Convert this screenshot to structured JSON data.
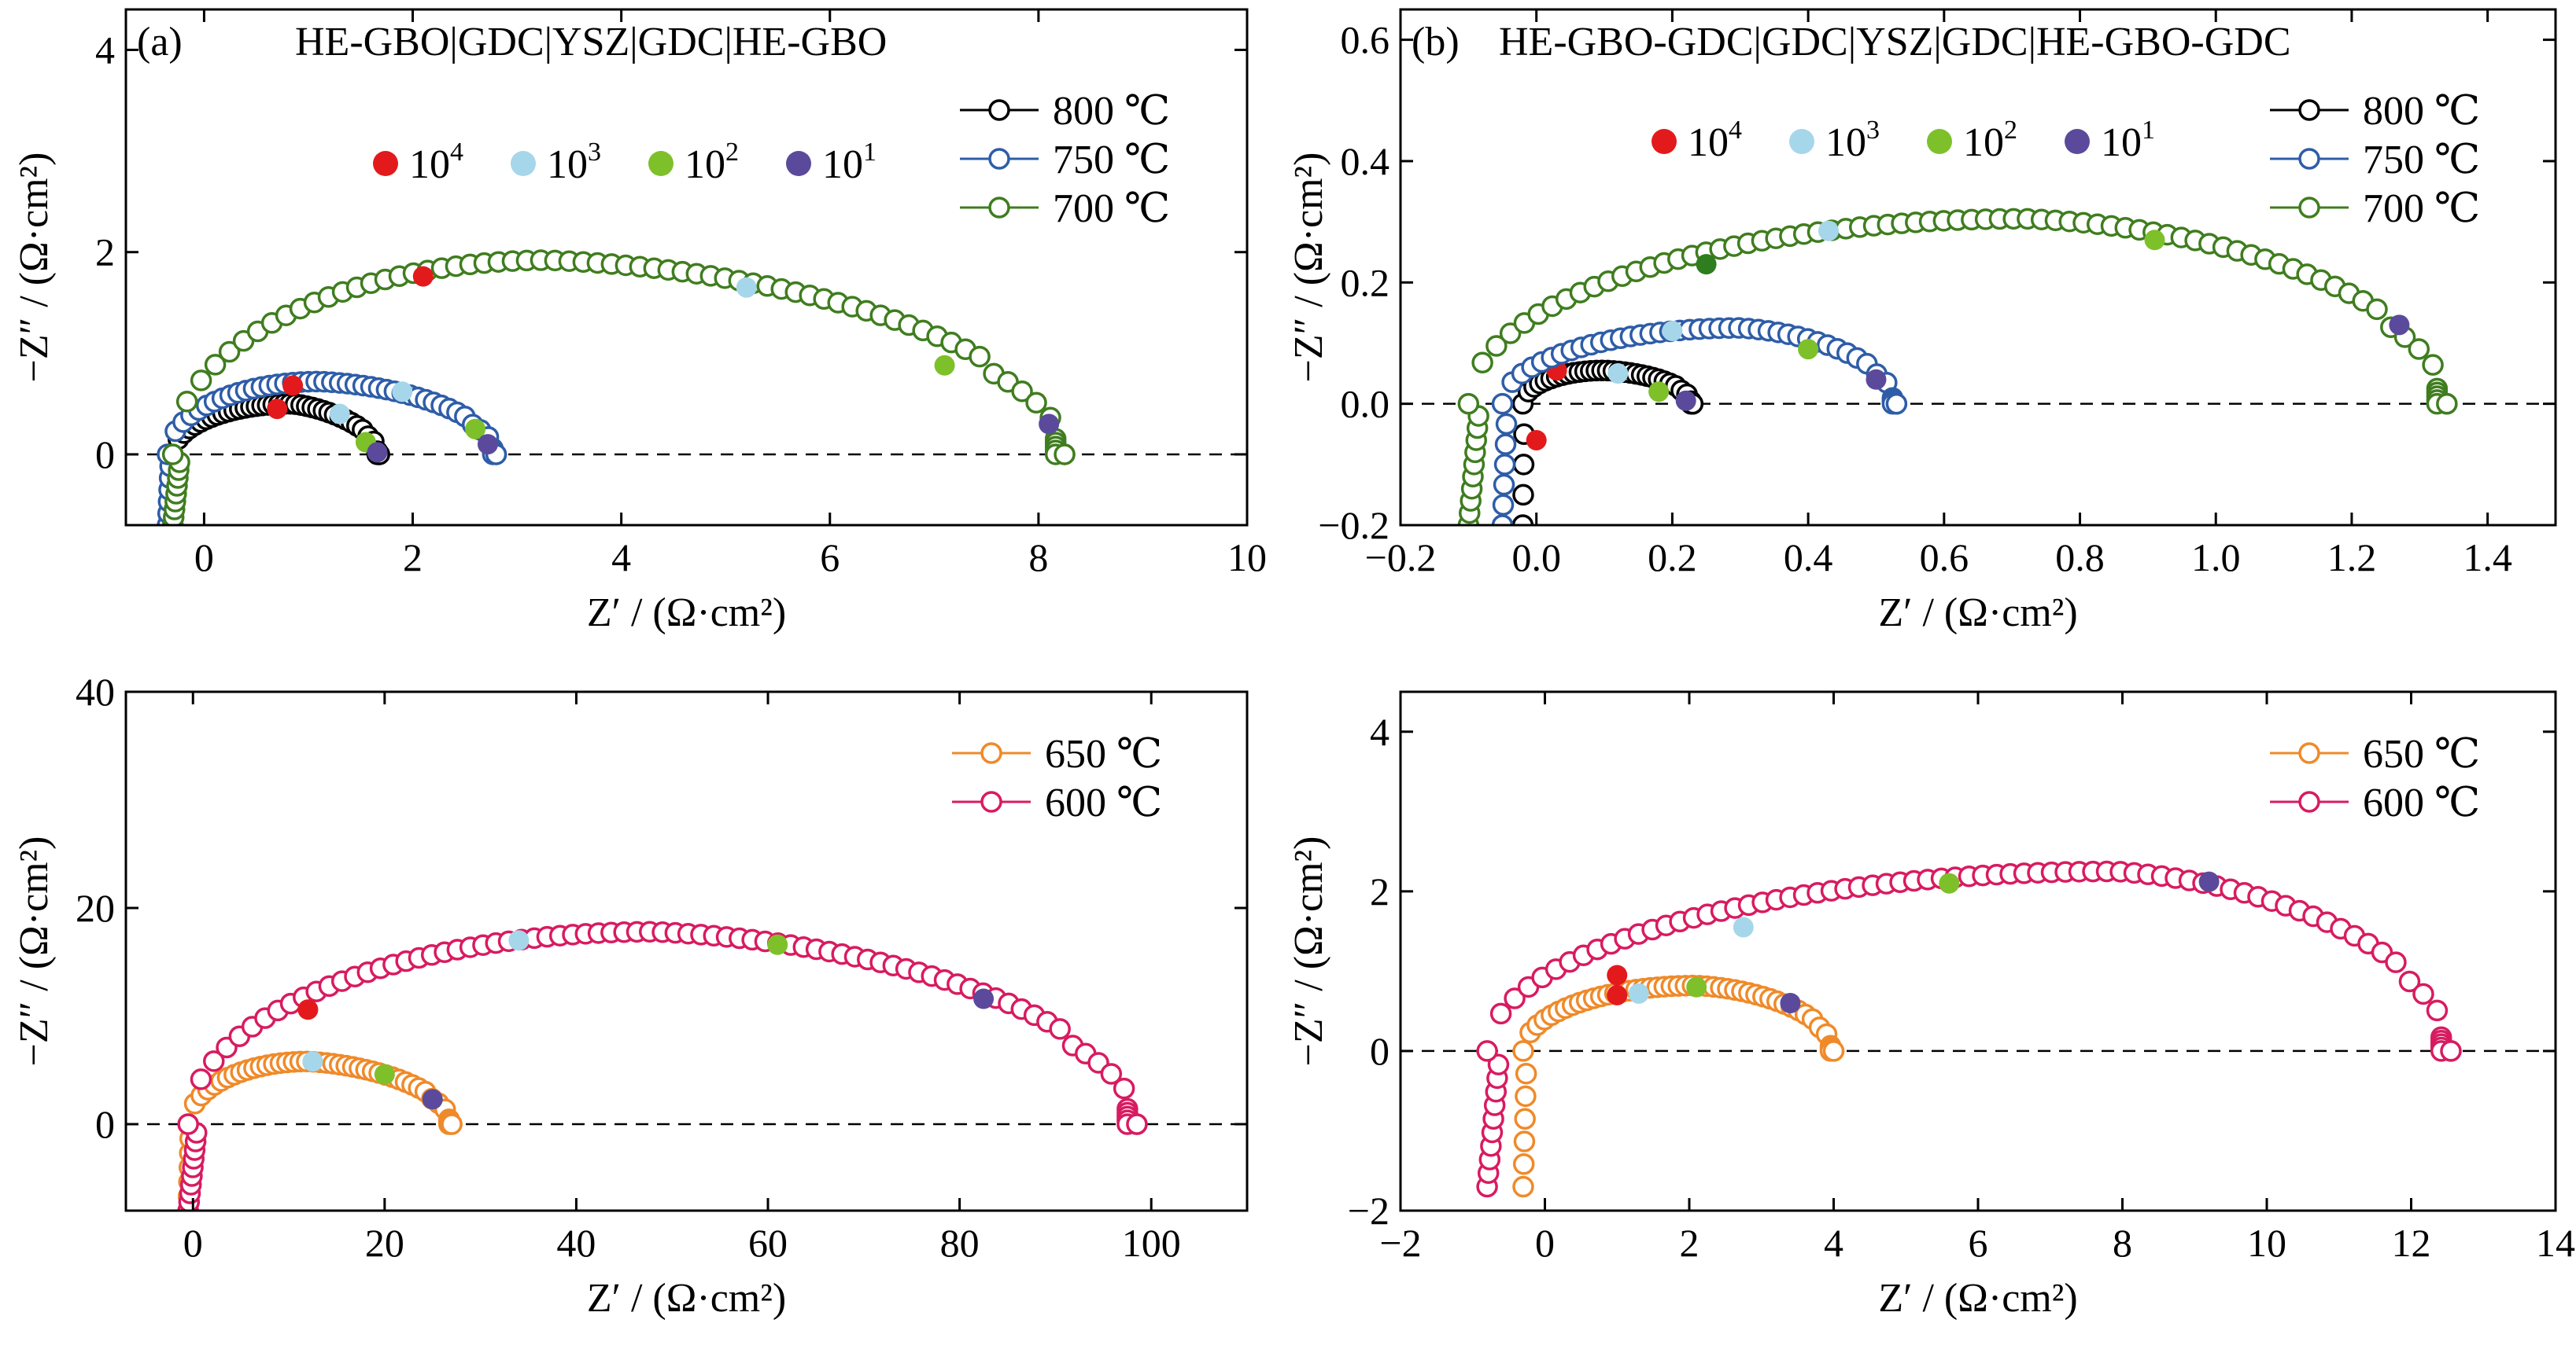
{
  "colors": {
    "800": "#000000",
    "750": "#2e5da8",
    "700": "#3f7d1f",
    "650": "#ef8a2a",
    "600": "#d81b60",
    "f1e4": "#e31a1c",
    "f1e3": "#a6d6ea",
    "f1e2": "#7ec02a",
    "f1e1": "#5b4a9b",
    "f1e2_panel_b700": "#2e7d1f"
  },
  "chart_data": [
    {
      "type": "scatter",
      "panel_label": "(a)",
      "title": "HE-GBO|GDC|YSZ|GDC|HE-GBO",
      "xlabel": "Z′ / (Ω·cm²)",
      "ylabel": "−Z″ / (Ω·cm²)",
      "xlim": [
        -0.75,
        10
      ],
      "ylim": [
        -0.7,
        4.4
      ],
      "xticks": [
        0,
        2,
        4,
        6,
        8,
        10
      ],
      "yticks": [
        0,
        2,
        4
      ],
      "zero_line": true,
      "legend_position": "top-right",
      "freq_markers_legend": [
        {
          "base": "10",
          "exp": "4",
          "color_key": "f1e4"
        },
        {
          "base": "10",
          "exp": "3",
          "color_key": "f1e3"
        },
        {
          "base": "10",
          "exp": "2",
          "color_key": "f1e2"
        },
        {
          "base": "10",
          "exp": "1",
          "color_key": "f1e1"
        }
      ],
      "series": [
        {
          "name": "800 ℃",
          "color_key": "800",
          "r0": -0.3,
          "r1": 0.85,
          "r2": 1.68,
          "h1": 0.5,
          "h2": 0.32,
          "y_start": -0.7,
          "y_end": 0,
          "n": 42,
          "freq_points": [
            {
              "x": 0.7,
              "y": 0.45,
              "color_key": "f1e4"
            },
            {
              "x": 1.3,
              "y": 0.4,
              "color_key": "f1e3"
            },
            {
              "x": 1.55,
              "y": 0.12,
              "color_key": "f1e2"
            },
            {
              "x": 1.66,
              "y": 0.02,
              "color_key": "f1e1"
            }
          ]
        },
        {
          "name": "750 ℃",
          "color_key": "750",
          "r0": -0.35,
          "r1": 1.1,
          "r2": 2.8,
          "h1": 0.72,
          "h2": 0.6,
          "y_start": -0.7,
          "y_end": 0,
          "n": 48,
          "freq_points": [
            {
              "x": 0.85,
              "y": 0.68,
              "color_key": "f1e4"
            },
            {
              "x": 1.9,
              "y": 0.62,
              "color_key": "f1e3"
            },
            {
              "x": 2.6,
              "y": 0.25,
              "color_key": "f1e2"
            },
            {
              "x": 2.72,
              "y": 0.1,
              "color_key": "f1e1"
            }
          ]
        },
        {
          "name": "700 ℃",
          "color_key": "700",
          "r0": -0.3,
          "r1": 3.3,
          "r2": 8.25,
          "h1": 1.92,
          "h2": 1.6,
          "y_start": -0.7,
          "y_end": 0,
          "n": 72,
          "freq_points": [
            {
              "x": 2.1,
              "y": 1.76,
              "color_key": "f1e4"
            },
            {
              "x": 5.2,
              "y": 1.65,
              "color_key": "f1e3"
            },
            {
              "x": 7.1,
              "y": 0.88,
              "color_key": "f1e2"
            },
            {
              "x": 8.1,
              "y": 0.3,
              "color_key": "f1e1"
            }
          ]
        }
      ]
    },
    {
      "type": "scatter",
      "panel_label": "(b)",
      "title": "HE-GBO-GDC|GDC|YSZ|GDC|HE-GBO-GDC",
      "xlabel": "Z′ / (Ω·cm²)",
      "ylabel": "−Z″ / (Ω·cm²)",
      "xlim": [
        -0.2,
        1.5
      ],
      "ylim": [
        -0.2,
        0.65
      ],
      "xticks": [
        -0.2,
        0,
        0.2,
        0.4,
        0.6,
        0.8,
        1.0,
        1.2,
        1.4
      ],
      "yticks": [
        -0.2,
        0,
        0.2,
        0.4,
        0.6
      ],
      "zero_line": true,
      "legend_position": "top-right",
      "freq_markers_legend": [
        {
          "base": "10",
          "exp": "4",
          "color_key": "f1e4"
        },
        {
          "base": "10",
          "exp": "3",
          "color_key": "f1e3"
        },
        {
          "base": "10",
          "exp": "2",
          "color_key": "f1e2"
        },
        {
          "base": "10",
          "exp": "1",
          "color_key": "f1e1"
        }
      ],
      "series": [
        {
          "name": "800 ℃",
          "color_key": "800",
          "r0": -0.02,
          "r1": 0.1,
          "r2": 0.23,
          "h1": 0.055,
          "h2": 0.045,
          "y_start": -0.2,
          "y_end": 0,
          "n": 34,
          "freq_points": [
            {
              "x": 0.03,
              "y": 0.055,
              "color_key": "f1e4"
            },
            {
              "x": 0.12,
              "y": 0.05,
              "color_key": "f1e3"
            },
            {
              "x": 0.18,
              "y": 0.02,
              "color_key": "f1e2"
            },
            {
              "x": 0.22,
              "y": 0.005,
              "color_key": "f1e1"
            }
          ]
        },
        {
          "name": "750 ℃",
          "color_key": "750",
          "r0": -0.05,
          "r1": 0.3,
          "r2": 0.53,
          "h1": 0.125,
          "h2": 0.1,
          "y_start": -0.2,
          "y_end": 0,
          "n": 46,
          "freq_points": [
            {
              "x": 0.0,
              "y": -0.06,
              "color_key": "f1e4"
            },
            {
              "x": 0.2,
              "y": 0.12,
              "color_key": "f1e3"
            },
            {
              "x": 0.4,
              "y": 0.09,
              "color_key": "f1e2"
            },
            {
              "x": 0.5,
              "y": 0.04,
              "color_key": "f1e1"
            }
          ]
        },
        {
          "name": "700 ℃",
          "color_key": "700",
          "r0": -0.1,
          "r1": 0.72,
          "r2": 1.34,
          "h1": 0.305,
          "h2": 0.26,
          "y_start": -0.2,
          "y_end": 0,
          "n": 80,
          "freq_points": [
            {
              "x": 0.25,
              "y": 0.23,
              "color_key": "f1e2_panel_b700"
            },
            {
              "x": 0.43,
              "y": 0.285,
              "color_key": "f1e3"
            },
            {
              "x": 0.91,
              "y": 0.27,
              "color_key": "f1e2"
            },
            {
              "x": 1.27,
              "y": 0.13,
              "color_key": "f1e1"
            }
          ]
        }
      ]
    },
    {
      "type": "scatter",
      "panel_label": "",
      "title": "",
      "xlabel": "Z′ / (Ω·cm²)",
      "ylabel": "−Z″ / (Ω·cm²)",
      "xlim": [
        -7,
        110
      ],
      "ylim": [
        -8,
        40
      ],
      "xticks": [
        0,
        20,
        40,
        60,
        80,
        100
      ],
      "yticks": [
        0,
        20,
        40
      ],
      "zero_line": true,
      "legend_position": "top-right",
      "freq_markers_legend": [],
      "series": [
        {
          "name": "650 ℃",
          "color_key": "650",
          "r0": -0.5,
          "r1": 12,
          "r2": 27,
          "h1": 5.8,
          "h2": 4.6,
          "y_start": -8,
          "y_end": 0,
          "n": 46,
          "freq_points": [
            {
              "x": 12.5,
              "y": 5.8,
              "color_key": "f1e3"
            },
            {
              "x": 20,
              "y": 4.6,
              "color_key": "f1e2"
            },
            {
              "x": 25,
              "y": 2.3,
              "color_key": "f1e1"
            }
          ]
        },
        {
          "name": "600 ℃",
          "color_key": "600",
          "r0": -0.5,
          "r1": 48,
          "r2": 98.5,
          "h1": 17.8,
          "h2": 14.8,
          "y_start": -8,
          "y_end": 0,
          "n": 84,
          "freq_points": [
            {
              "x": 12,
              "y": 10.6,
              "color_key": "f1e4"
            },
            {
              "x": 34,
              "y": 17,
              "color_key": "f1e3"
            },
            {
              "x": 61,
              "y": 16.6,
              "color_key": "f1e2"
            },
            {
              "x": 82.5,
              "y": 11.6,
              "color_key": "f1e1"
            }
          ]
        }
      ]
    },
    {
      "type": "scatter",
      "panel_label": "",
      "title": "",
      "xlabel": "Z′ / (Ω·cm²)",
      "ylabel": "−Z″ / (Ω·cm²)",
      "xlim": [
        -2,
        14
      ],
      "ylim": [
        -2,
        4.5
      ],
      "xticks": [
        -2,
        0,
        2,
        4,
        6,
        8,
        10,
        12,
        14
      ],
      "yticks": [
        -2,
        0,
        2,
        4
      ],
      "zero_line": true,
      "legend_position": "top-right",
      "freq_markers_legend": [],
      "series": [
        {
          "name": "650 ℃",
          "color_key": "650",
          "r0": -0.3,
          "r1": 2.1,
          "r2": 4.0,
          "h1": 0.82,
          "h2": 0.68,
          "y_start": -1.7,
          "y_end": 0,
          "n": 50,
          "freq_points": [
            {
              "x": 1.0,
              "y": 0.7,
              "color_key": "f1e4"
            },
            {
              "x": 1.3,
              "y": 0.72,
              "color_key": "f1e3"
            },
            {
              "x": 2.1,
              "y": 0.8,
              "color_key": "f1e2"
            },
            {
              "x": 3.4,
              "y": 0.6,
              "color_key": "f1e1"
            }
          ]
        },
        {
          "name": "600 ℃",
          "color_key": "600",
          "r0": -0.8,
          "r1": 7.9,
          "r2": 12.55,
          "h1": 2.25,
          "h2": 1.8,
          "y_start": -1.7,
          "y_end": 0,
          "n": 80,
          "freq_points": [
            {
              "x": 1.0,
              "y": 0.95,
              "color_key": "f1e4"
            },
            {
              "x": 2.75,
              "y": 1.55,
              "color_key": "f1e3"
            },
            {
              "x": 5.6,
              "y": 2.1,
              "color_key": "f1e2"
            },
            {
              "x": 9.2,
              "y": 2.12,
              "color_key": "f1e1"
            }
          ]
        }
      ]
    }
  ]
}
